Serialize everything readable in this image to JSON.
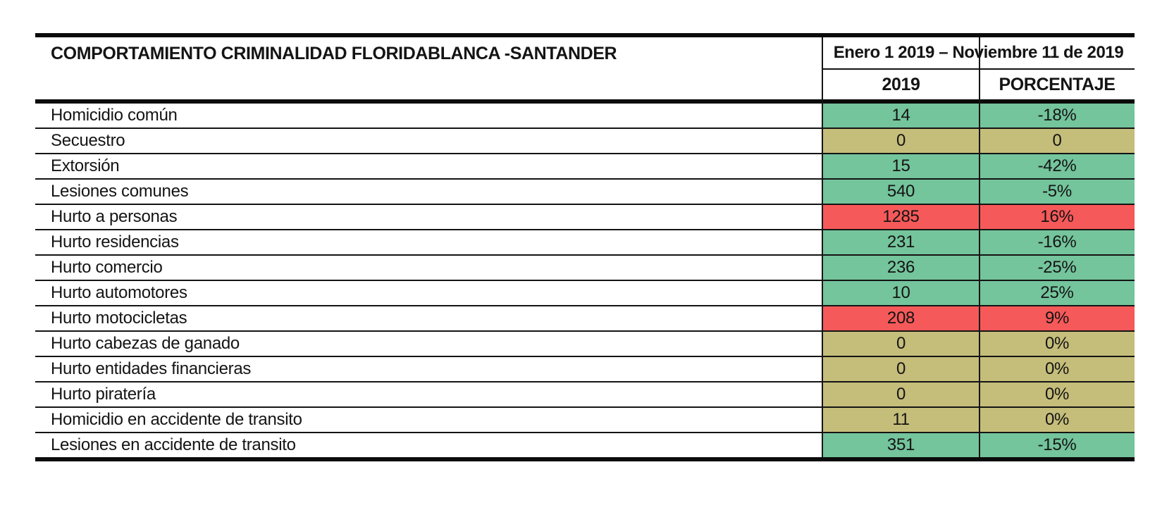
{
  "table": {
    "title": "COMPORTAMIENTO CRIMINALIDAD FLORIDABLANCA -SANTANDER",
    "period": "Enero 1 2019 – Noviembre 11 de 2019",
    "columns": {
      "year": "2019",
      "percent": "PORCENTAJE"
    },
    "colors": {
      "green": "#74c49c",
      "khaki": "#c5bd7a",
      "red": "#f65959"
    },
    "rows": [
      {
        "label": "Homicidio común",
        "value": "14",
        "pct": "-18%",
        "status": "green"
      },
      {
        "label": "Secuestro",
        "value": "0",
        "pct": "0",
        "status": "khaki"
      },
      {
        "label": "Extorsión",
        "value": "15",
        "pct": "-42%",
        "status": "green"
      },
      {
        "label": "Lesiones comunes",
        "value": "540",
        "pct": "-5%",
        "status": "green"
      },
      {
        "label": "Hurto a personas",
        "value": "1285",
        "pct": "16%",
        "status": "red"
      },
      {
        "label": "Hurto residencias",
        "value": "231",
        "pct": "-16%",
        "status": "green"
      },
      {
        "label": "Hurto comercio",
        "value": "236",
        "pct": "-25%",
        "status": "green"
      },
      {
        "label": "Hurto automotores",
        "value": "10",
        "pct": "25%",
        "status": "green"
      },
      {
        "label": "Hurto motocicletas",
        "value": "208",
        "pct": "9%",
        "status": "red"
      },
      {
        "label": "Hurto cabezas de ganado",
        "value": "0",
        "pct": "0%",
        "status": "khaki"
      },
      {
        "label": "Hurto entidades financieras",
        "value": "0",
        "pct": "0%",
        "status": "khaki"
      },
      {
        "label": "Hurto piratería",
        "value": "0",
        "pct": "0%",
        "status": "khaki"
      },
      {
        "label": "Homicidio en accidente de transito",
        "value": "11",
        "pct": "0%",
        "status": "khaki"
      },
      {
        "label": "Lesiones en accidente de transito",
        "value": "351",
        "pct": "-15%",
        "status": "green"
      }
    ]
  },
  "chart_data": {
    "type": "table",
    "title": "COMPORTAMIENTO CRIMINALIDAD FLORIDABLANCA -SANTANDER",
    "period": "Enero 1 2019 – Noviembre 11 de 2019",
    "columns": [
      "2019",
      "PORCENTAJE"
    ],
    "rows": [
      [
        "Homicidio común",
        14,
        "-18%"
      ],
      [
        "Secuestro",
        0,
        "0"
      ],
      [
        "Extorsión",
        15,
        "-42%"
      ],
      [
        "Lesiones comunes",
        540,
        "-5%"
      ],
      [
        "Hurto a personas",
        1285,
        "16%"
      ],
      [
        "Hurto residencias",
        231,
        "-16%"
      ],
      [
        "Hurto comercio",
        236,
        "-25%"
      ],
      [
        "Hurto automotores",
        10,
        "25%"
      ],
      [
        "Hurto motocicletas",
        208,
        "9%"
      ],
      [
        "Hurto cabezas de ganado",
        0,
        "0%"
      ],
      [
        "Hurto entidades financieras",
        0,
        "0%"
      ],
      [
        "Hurto piratería",
        0,
        "0%"
      ],
      [
        "Homicidio en accidente de transito",
        11,
        "0%"
      ],
      [
        "Lesiones en accidente de transito",
        351,
        "-15%"
      ]
    ],
    "row_cell_colors": [
      "green",
      "khaki",
      "green",
      "green",
      "red",
      "green",
      "green",
      "green",
      "red",
      "khaki",
      "khaki",
      "khaki",
      "khaki",
      "green"
    ],
    "layout_hints": {
      "highlight_meaning": "cell background color per row",
      "grid": "horizontal rules + two vertical dividers"
    }
  }
}
